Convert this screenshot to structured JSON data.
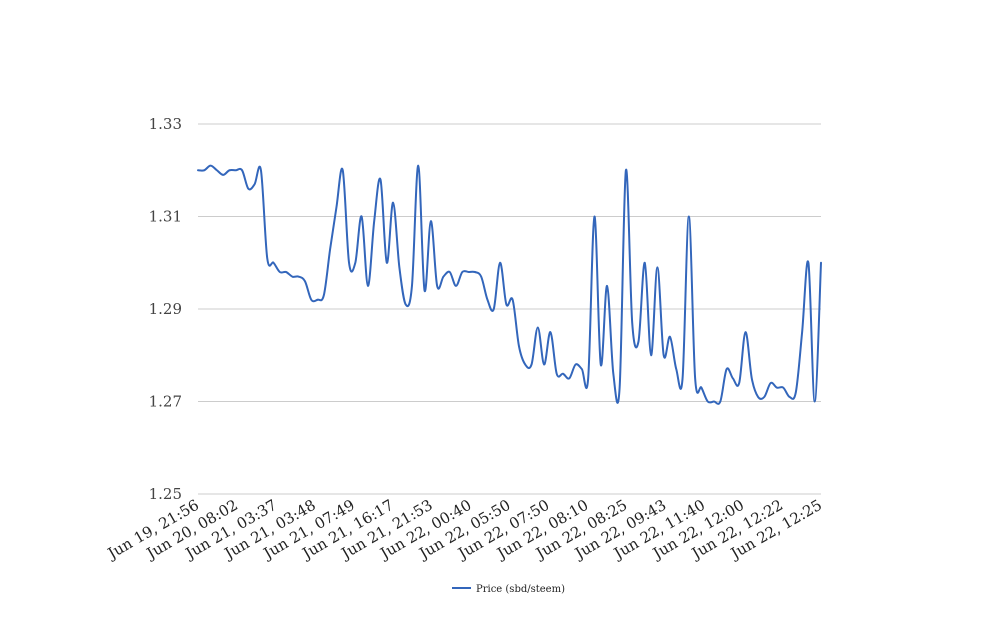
{
  "chart_data": {
    "type": "line",
    "title": "",
    "xlabel": "",
    "ylabel": "",
    "ylim": [
      1.25,
      1.33
    ],
    "yticks": [
      "1.25",
      "1.27",
      "1.29",
      "1.31",
      "1.33"
    ],
    "grid": true,
    "legend_position": "bottom",
    "x_tick_labels": [
      "Jun 19, 21:56",
      "Jun 20, 08:02",
      "Jun 21, 03:37",
      "Jun 21, 03:48",
      "Jun 21, 07:49",
      "Jun 21, 16:17",
      "Jun 21, 21:53",
      "Jun 22, 00:40",
      "Jun 22, 05:50",
      "Jun 22, 07:50",
      "Jun 22, 08:10",
      "Jun 22, 08:25",
      "Jun 22, 09:43",
      "Jun 22, 11:40",
      "Jun 22, 12:00",
      "Jun 22, 12:22",
      "Jun 22, 12:25"
    ],
    "series": [
      {
        "name": "Price (sbd/steem)",
        "color": "#3366bb",
        "values": [
          1.32,
          1.32,
          1.321,
          1.32,
          1.319,
          1.32,
          1.32,
          1.32,
          1.316,
          1.317,
          1.32,
          1.301,
          1.3,
          1.298,
          1.298,
          1.297,
          1.297,
          1.296,
          1.292,
          1.292,
          1.293,
          1.303,
          1.312,
          1.32,
          1.3,
          1.3,
          1.31,
          1.295,
          1.309,
          1.318,
          1.3,
          1.313,
          1.299,
          1.291,
          1.295,
          1.321,
          1.294,
          1.309,
          1.295,
          1.297,
          1.298,
          1.295,
          1.298,
          1.298,
          1.298,
          1.297,
          1.292,
          1.29,
          1.3,
          1.291,
          1.292,
          1.282,
          1.278,
          1.278,
          1.286,
          1.278,
          1.285,
          1.276,
          1.276,
          1.275,
          1.278,
          1.277,
          1.275,
          1.31,
          1.278,
          1.295,
          1.276,
          1.273,
          1.32,
          1.287,
          1.283,
          1.3,
          1.28,
          1.299,
          1.28,
          1.284,
          1.277,
          1.275,
          1.31,
          1.275,
          1.273,
          1.27,
          1.27,
          1.27,
          1.277,
          1.275,
          1.274,
          1.285,
          1.275,
          1.271,
          1.271,
          1.274,
          1.273,
          1.273,
          1.271,
          1.272,
          1.285,
          1.3,
          1.27,
          1.3
        ]
      }
    ]
  }
}
